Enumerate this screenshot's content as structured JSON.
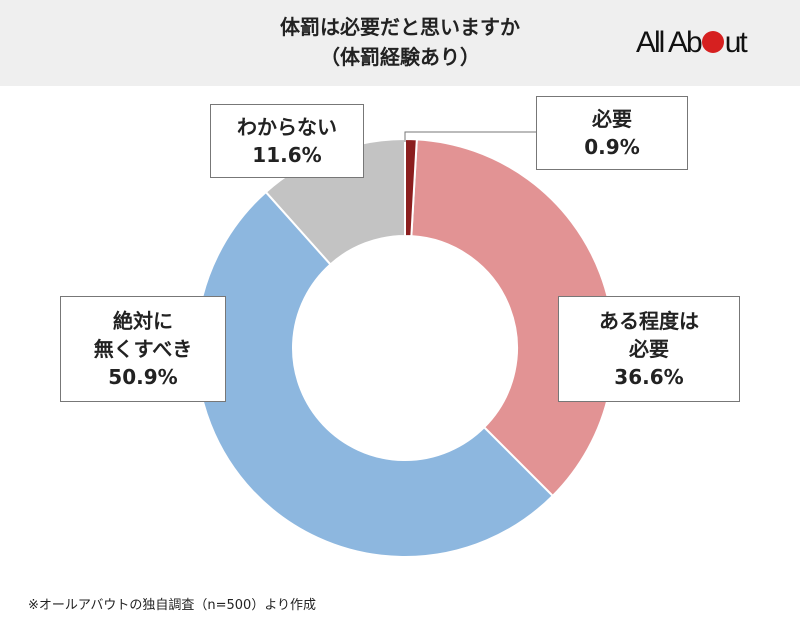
{
  "title_line1": "体罰は必要だと思いますか",
  "title_line2": "（体罰経験あり）",
  "logo": "All About",
  "footnote": "※オールアバウトの独自調査（n=500）より作成",
  "chart_data": {
    "type": "pie",
    "donut": true,
    "start": "top, clockwise",
    "slices": [
      {
        "label": "必要",
        "value": 0.9,
        "display": "0.9%",
        "color": "#8b1e1e"
      },
      {
        "label": "ある程度は必要",
        "value": 36.6,
        "display": "36.6%",
        "color": "#e29394"
      },
      {
        "label": "絶対に無くすべき",
        "value": 50.9,
        "display": "50.9%",
        "color": "#8db7df"
      },
      {
        "label": "わからない",
        "value": 11.6,
        "display": "11.6%",
        "color": "#c3c3c3"
      }
    ],
    "label_lines": {
      "s0": [
        "必要"
      ],
      "s1": [
        "ある程度は",
        "必要"
      ],
      "s2": [
        "絶対に",
        "無くすべき"
      ],
      "s3": [
        "わからない"
      ]
    }
  }
}
